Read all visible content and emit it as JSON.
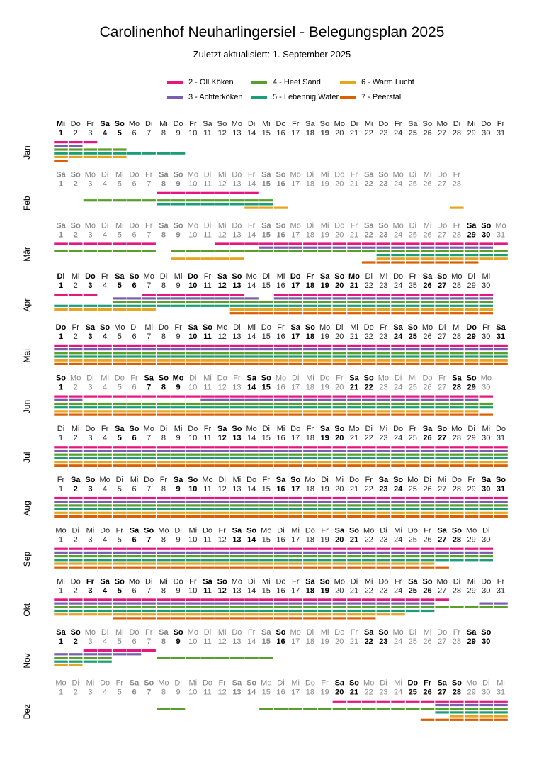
{
  "page": {
    "title": "Carolinenhof Neuharlingersiel - Belegungsplan 2025",
    "subtitle": "Zuletzt aktualisiert:  1. September 2025"
  },
  "chart_data": {
    "type": "occupancy-calendar",
    "year": 2025,
    "legend": [
      {
        "name": "2 - Oll Köken",
        "color": "#e7157f"
      },
      {
        "name": "3 - Achterköken",
        "color": "#7a5fb0"
      },
      {
        "name": "4 - Heet Sand",
        "color": "#5a9f2c"
      },
      {
        "name": "5 - Lebennig Water",
        "color": "#1b9e77"
      },
      {
        "name": "6 - Warm Lucht",
        "color": "#e6a521"
      },
      {
        "name": "7 - Peerstall",
        "color": "#d95f02"
      }
    ],
    "weekday_labels": [
      "Mo",
      "Di",
      "Mi",
      "Do",
      "Fr",
      "Sa",
      "So"
    ],
    "highlight_days_note": "bold = today/emphasised days, grey = weekend",
    "months": [
      {
        "label": "Jan",
        "days": 31,
        "start_weekday": 2,
        "bold": [
          1,
          4,
          5
        ],
        "bookings": [
          [
            [
              1,
              3
            ]
          ],
          [
            [
              1,
              2
            ]
          ],
          [
            [
              1,
              5
            ]
          ],
          [
            [
              1,
              5
            ],
            [
              6,
              9
            ]
          ],
          [
            [
              1,
              5
            ]
          ],
          [
            [
              1,
              1
            ]
          ]
        ]
      },
      {
        "label": "Feb",
        "days": 28,
        "start_weekday": 5,
        "bold": [],
        "bookings": [
          [
            [
              8,
              14
            ]
          ],
          [],
          [
            [
              3,
              7
            ],
            [
              8,
              15
            ]
          ],
          [
            [
              8,
              15
            ]
          ],
          [
            [
              14,
              16
            ],
            [
              28,
              28
            ]
          ],
          []
        ]
      },
      {
        "label": "Mär",
        "days": 31,
        "start_weekday": 5,
        "bold": [
          29,
          30
        ],
        "bookings": [
          [
            [
              1,
              7
            ],
            [
              12,
              31
            ]
          ],
          [
            [
              15,
              30
            ]
          ],
          [
            [
              1,
              7
            ],
            [
              9,
              26
            ],
            [
              27,
              31
            ]
          ],
          [
            [
              23,
              31
            ]
          ],
          [
            [
              9,
              13
            ],
            [
              23,
              31
            ]
          ],
          [
            [
              22,
              29
            ]
          ]
        ]
      },
      {
        "label": "Apr",
        "days": 30,
        "start_weekday": 1,
        "bold": [
          1,
          3,
          5,
          6,
          10,
          12,
          13,
          17,
          18,
          19,
          20,
          21,
          26,
          27
        ],
        "bookings": [
          [
            [
              1,
              3
            ],
            [
              7,
              13
            ],
            [
              16,
              30
            ]
          ],
          [
            [
              5,
              14
            ],
            [
              16,
              30
            ]
          ],
          [
            [
              5,
              30
            ]
          ],
          [
            [
              1,
              30
            ]
          ],
          [
            [
              1,
              7
            ],
            [
              13,
              30
            ]
          ],
          [
            [
              13,
              30
            ]
          ]
        ]
      },
      {
        "label": "Mai",
        "days": 31,
        "start_weekday": 3,
        "bold": [
          1,
          3,
          4,
          10,
          11,
          17,
          18,
          24,
          25,
          29,
          31
        ],
        "bookings": [
          [
            [
              1,
              31
            ]
          ],
          [
            [
              1,
              31
            ]
          ],
          [
            [
              1,
              31
            ]
          ],
          [
            [
              1,
              31
            ]
          ],
          [
            [
              1,
              31
            ]
          ],
          [
            [
              1,
              31
            ]
          ]
        ]
      },
      {
        "label": "Jun",
        "days": 30,
        "start_weekday": 6,
        "bold": [
          1,
          7,
          8,
          9,
          14,
          15,
          21,
          22,
          28,
          29
        ],
        "bookings": [
          [
            [
              1,
              30
            ]
          ],
          [
            [
              1,
              2
            ],
            [
              11,
              29
            ]
          ],
          [
            [
              1,
              30
            ]
          ],
          [
            [
              1,
              30
            ]
          ],
          [
            [
              1,
              29
            ]
          ],
          [
            [
              1,
              30
            ]
          ]
        ]
      },
      {
        "label": "Jul",
        "days": 31,
        "start_weekday": 1,
        "bold": [
          5,
          6,
          12,
          13,
          19,
          20,
          26,
          27
        ],
        "bookings": [
          [
            [
              1,
              31
            ]
          ],
          [
            [
              1,
              31
            ]
          ],
          [
            [
              1,
              31
            ]
          ],
          [
            [
              1,
              31
            ]
          ],
          [
            [
              1,
              31
            ]
          ],
          [
            [
              1,
              31
            ]
          ]
        ]
      },
      {
        "label": "Aug",
        "days": 31,
        "start_weekday": 4,
        "bold": [
          2,
          3,
          9,
          10,
          16,
          17,
          23,
          24,
          30,
          31
        ],
        "bookings": [
          [
            [
              1,
              31
            ]
          ],
          [
            [
              1,
              31
            ]
          ],
          [
            [
              1,
              31
            ]
          ],
          [
            [
              1,
              31
            ]
          ],
          [
            [
              1,
              31
            ]
          ],
          [
            [
              1,
              31
            ]
          ]
        ]
      },
      {
        "label": "Sep",
        "days": 30,
        "start_weekday": 0,
        "bold": [
          6,
          7,
          13,
          14,
          20,
          21,
          27,
          28
        ],
        "bookings": [
          [
            [
              1,
              30
            ]
          ],
          [
            [
              1,
              30
            ]
          ],
          [
            [
              1,
              30
            ]
          ],
          [
            [
              1,
              30
            ]
          ],
          [
            [
              1,
              26
            ]
          ],
          [
            [
              1,
              27
            ]
          ]
        ]
      },
      {
        "label": "Okt",
        "days": 31,
        "start_weekday": 2,
        "bold": [
          3,
          4,
          5,
          11,
          12,
          18,
          19,
          25,
          26
        ],
        "bookings": [
          [
            [
              1,
              27
            ]
          ],
          [
            [
              1,
              26
            ],
            [
              30,
              31
            ]
          ],
          [
            [
              1,
              31
            ]
          ],
          [
            [
              1,
              26
            ]
          ],
          [
            [
              1,
              24
            ]
          ],
          [
            [
              5,
              22
            ]
          ]
        ]
      },
      {
        "label": "Nov",
        "days": 30,
        "start_weekday": 5,
        "bold": [
          1,
          2,
          9,
          16,
          22,
          23,
          29,
          30
        ],
        "bookings": [
          [
            [
              3,
              7
            ]
          ],
          [
            [
              1,
              6
            ]
          ],
          [
            [
              1,
              4
            ],
            [
              8,
              15
            ]
          ],
          [
            [
              1,
              4
            ]
          ],
          [
            [
              1,
              2
            ]
          ],
          []
        ]
      },
      {
        "label": "Dez",
        "days": 31,
        "start_weekday": 0,
        "bold": [
          20,
          21,
          25,
          26,
          27,
          28
        ],
        "bookings": [
          [
            [
              20,
              31
            ]
          ],
          [
            [
              27,
              31
            ]
          ],
          [
            [
              8,
              9
            ],
            [
              15,
              31
            ]
          ],
          [
            [
              27,
              31
            ]
          ],
          [
            [
              28,
              31
            ]
          ],
          [
            [
              26,
              31
            ]
          ]
        ]
      }
    ]
  }
}
